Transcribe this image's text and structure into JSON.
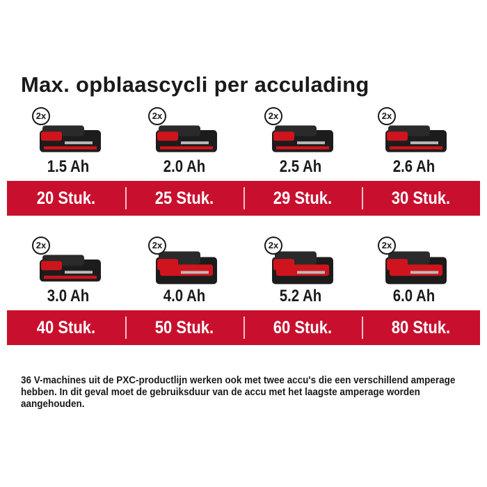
{
  "title": "Max. opblaascycli per acculading",
  "badge": "2x",
  "rows": [
    {
      "items": [
        {
          "capacity": "1.5 Ah",
          "count": "20 Stuk.",
          "size": "small"
        },
        {
          "capacity": "2.0 Ah",
          "count": "25 Stuk.",
          "size": "small"
        },
        {
          "capacity": "2.5 Ah",
          "count": "29 Stuk.",
          "size": "small"
        },
        {
          "capacity": "2.6 Ah",
          "count": "30 Stuk.",
          "size": "small"
        }
      ]
    },
    {
      "items": [
        {
          "capacity": "3.0 Ah",
          "count": "40 Stuk.",
          "size": "small"
        },
        {
          "capacity": "4.0 Ah",
          "count": "50 Stuk.",
          "size": "large"
        },
        {
          "capacity": "5.2 Ah",
          "count": "60 Stuk.",
          "size": "large"
        },
        {
          "capacity": "6.0 Ah",
          "count": "80 Stuk.",
          "size": "large"
        }
      ]
    }
  ],
  "note": "36 V-machines uit de PXC-productlijn werken ook met twee accu's die een verschillend amperage hebben. In dit geval moet de gebruiksduur van de accu met het laagste amperage worden aangehouden.",
  "colors": {
    "band": "#c8102e",
    "battery_red": "#d0141e",
    "battery_black": "#1c1c1c"
  }
}
